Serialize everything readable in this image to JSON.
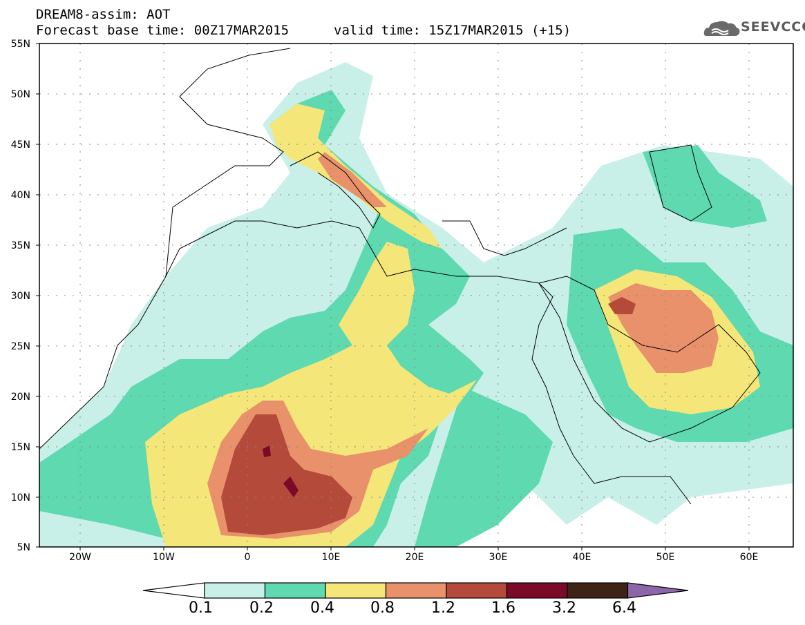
{
  "header": {
    "line1": "DREAM8-assim: AOT",
    "line2": "Forecast base time: 00Z17MAR2015",
    "line3": "valid time: 15Z17MAR2015 (+15)",
    "logo": "SEEVCCC"
  },
  "axes": {
    "lat_labels": [
      "55N",
      "50N",
      "45N",
      "40N",
      "35N",
      "30N",
      "25N",
      "20N",
      "15N",
      "10N",
      "5N"
    ],
    "lon_labels": [
      "20W",
      "10W",
      "0",
      "10E",
      "20E",
      "30E",
      "40E",
      "50E",
      "60E"
    ]
  },
  "colorbar": {
    "labels": [
      "0.1",
      "0.2",
      "0.4",
      "0.8",
      "1.2",
      "1.6",
      "3.2",
      "6.4"
    ],
    "colors": [
      "#c9f0e8",
      "#5ed9b0",
      "#f5e67a",
      "#e8916a",
      "#b34a3a",
      "#7a0a28",
      "#3d2416",
      "#8c66a8"
    ]
  }
}
